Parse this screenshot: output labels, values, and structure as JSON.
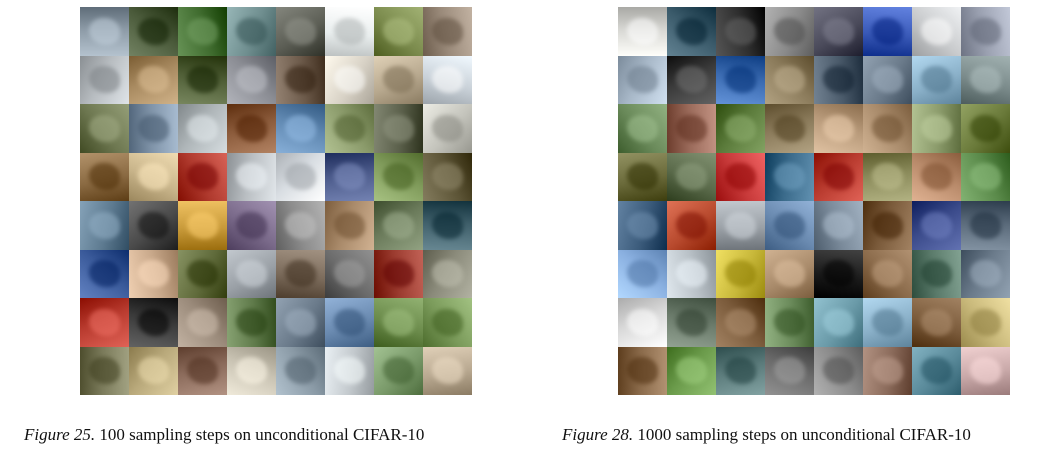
{
  "figures": [
    {
      "id": "fig-left",
      "caption_label": "Figure 25.",
      "caption_text": " 100 sampling steps on unconditional CIFAR-10",
      "palette": [
        [
          "#8c9aa6",
          "#4a5a3a",
          "#3f6b2e",
          "#6f8e8f",
          "#5c5e55",
          "#e9eeee",
          "#7a8a4c",
          "#9a8a7a"
        ],
        [
          "#b7bcc0",
          "#a88a60",
          "#4f5e36",
          "#8a8c93",
          "#6c5a4a",
          "#d8d2c6",
          "#b7a88e",
          "#c9d1d8"
        ],
        [
          "#6d7750",
          "#7f93a8",
          "#aeb5b8",
          "#8a5a3a",
          "#5f87b0",
          "#8a9a6a",
          "#5a5f4a",
          "#c4c4bc"
        ],
        [
          "#8a6a42",
          "#c8b48a",
          "#b03a2e",
          "#b9bec2",
          "#d8dde2",
          "#4b5a8a",
          "#7f9a5a",
          "#5c5436"
        ],
        [
          "#5d7a90",
          "#4a4a4a",
          "#c89a3a",
          "#7a6a8a",
          "#8c8c8c",
          "#a98a6a",
          "#6a7a5a",
          "#3f5f6a"
        ],
        [
          "#3a5a9a",
          "#c8a88a",
          "#5f6a3a",
          "#9aa0a6",
          "#7a6a5a",
          "#6a6a6a",
          "#9a3a2e",
          "#8a8a7a"
        ],
        [
          "#b83a2e",
          "#3a3a3a",
          "#9a8a7a",
          "#5f7a4a",
          "#6a7a8a",
          "#6a8ab0",
          "#6a8a4a",
          "#7a9a5a"
        ],
        [
          "#7a7a5a",
          "#b8a87a",
          "#8a6a5a",
          "#c8c2b2",
          "#8a9aa6",
          "#c2c8cc",
          "#7a9a6a",
          "#b8a890"
        ]
      ]
    },
    {
      "id": "fig-right",
      "caption_label": "Figure 28.",
      "caption_text": " 1000 sampling steps on unconditional CIFAR-10",
      "palette": [
        [
          "#d6d6d2",
          "#3a5a6a",
          "#2e2e2e",
          "#8a8a8a",
          "#4a4a5a",
          "#3a5ab8",
          "#c8cacc",
          "#9aa0b0"
        ],
        [
          "#a8b8c8",
          "#3a3a3a",
          "#3a6ab0",
          "#8a7a5a",
          "#4a5a6a",
          "#6a7a8a",
          "#8ab0c8",
          "#7a8a8a"
        ],
        [
          "#6a8a5a",
          "#9a6a5a",
          "#5a7a3a",
          "#8a7a5a",
          "#b89a7a",
          "#a88a6a",
          "#8a9a6a",
          "#6a7a3a"
        ],
        [
          "#6a6a3a",
          "#5a6a4a",
          "#c83a3a",
          "#3a6a8a",
          "#b83a2e",
          "#8a8a5a",
          "#b88a6a",
          "#5a8a4a"
        ],
        [
          "#3a5a7a",
          "#b84a2e",
          "#9aa0a6",
          "#6a8ab0",
          "#7a8a9a",
          "#7a5a3a",
          "#3a4a8a",
          "#5a6a7a"
        ],
        [
          "#8ab0e0",
          "#b8c0c6",
          "#c8b83a",
          "#a88a6a",
          "#1a1a1a",
          "#8a6a4a",
          "#5a7a6a",
          "#6a7a8a"
        ],
        [
          "#d8d8d8",
          "#6a7a6a",
          "#7a5a3a",
          "#6a8a5a",
          "#6a9aa8",
          "#8ab0c8",
          "#7a5a3a",
          "#c8b87a"
        ],
        [
          "#8a6a4a",
          "#6a9a4a",
          "#5a7a7a",
          "#6a6a6a",
          "#8a8a8a",
          "#8a6a5a",
          "#5a8a9a",
          "#c8a8a8"
        ]
      ]
    }
  ]
}
